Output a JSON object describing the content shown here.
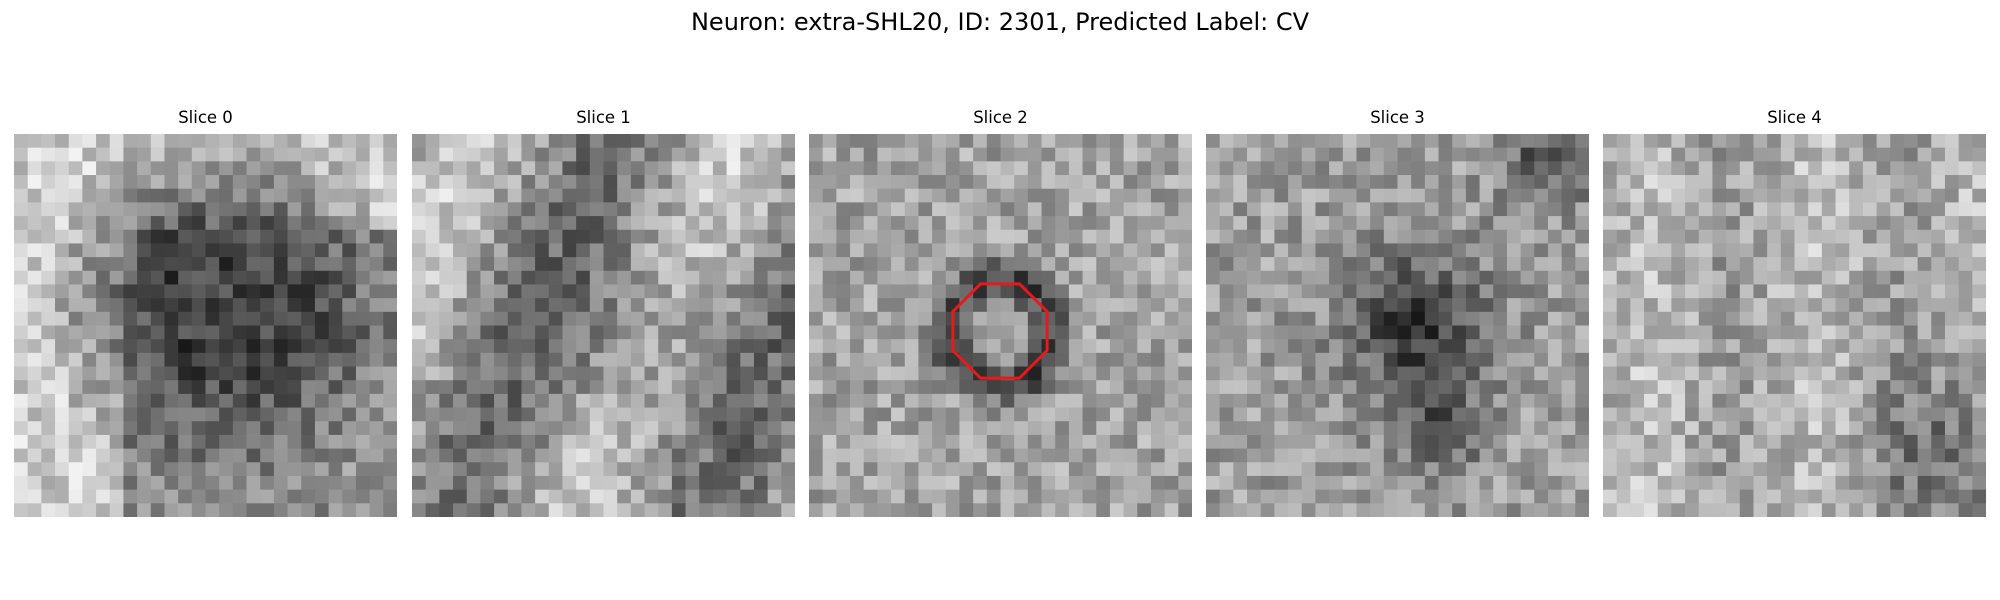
{
  "figure": {
    "suptitle": "Neuron: extra-SHL20, ID: 2301, Predicted Label: CV"
  },
  "panels": [
    {
      "title": "Slice 0",
      "seed": 11,
      "dark_regions": "large dark blob centred-left",
      "has_outline": false
    },
    {
      "title": "Slice 1",
      "seed": 23,
      "dark_regions": "light textured field",
      "has_outline": false
    },
    {
      "title": "Slice 2",
      "seed": 37,
      "dark_regions": "dark ring around centre",
      "has_outline": true
    },
    {
      "title": "Slice 3",
      "seed": 51,
      "dark_regions": "dark spot in centre",
      "has_outline": false
    },
    {
      "title": "Slice 4",
      "seed": 67,
      "dark_regions": "light speckled field",
      "has_outline": false
    }
  ],
  "outline": {
    "color": "#e41a1c",
    "shape": "octagon"
  },
  "colormap": "gray"
}
